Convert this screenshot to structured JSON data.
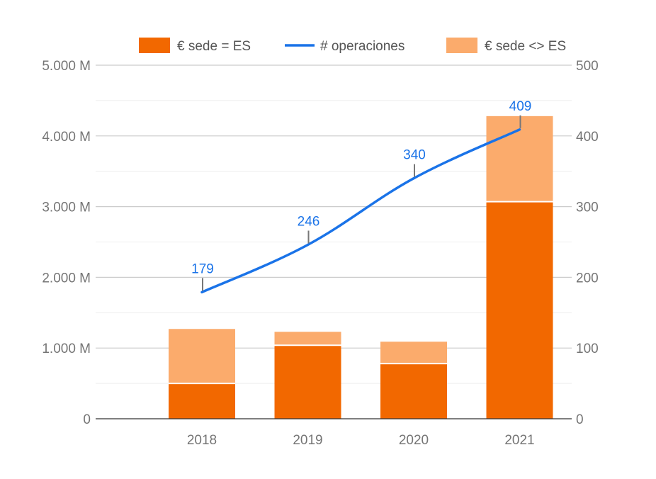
{
  "chart_data": {
    "type": "bar",
    "categories": [
      "2018",
      "2019",
      "2020",
      "2021"
    ],
    "series": [
      {
        "name": "€ sede = ES",
        "kind": "bar",
        "axis": "left",
        "color": "#f26800",
        "values": [
          500,
          1040,
          780,
          3070
        ]
      },
      {
        "name": "€ sede <> ES",
        "kind": "bar",
        "axis": "left",
        "color": "#fbab6c",
        "values": [
          770,
          190,
          310,
          1210
        ]
      },
      {
        "name": "# operaciones",
        "kind": "line",
        "axis": "right",
        "color": "#1a73e8",
        "values": [
          179,
          246,
          340,
          409
        ],
        "labels": [
          "179",
          "246",
          "340",
          "409"
        ]
      }
    ],
    "stacked": true,
    "left_axis": {
      "ticks": [
        0,
        1000,
        2000,
        3000,
        4000,
        5000
      ],
      "tick_labels": [
        "0",
        "1.000 M",
        "2.000 M",
        "3.000 M",
        "4.000 M",
        "5.000 M"
      ],
      "ylim": [
        0,
        5000
      ]
    },
    "right_axis": {
      "ticks": [
        0,
        100,
        200,
        300,
        400,
        500
      ],
      "tick_labels": [
        "0",
        "100",
        "200",
        "300",
        "400",
        "500"
      ],
      "ylim": [
        0,
        500
      ]
    },
    "legend_order": [
      "€ sede = ES",
      "# operaciones",
      "€ sede <> ES"
    ],
    "legend_position": "top",
    "grid": true
  }
}
